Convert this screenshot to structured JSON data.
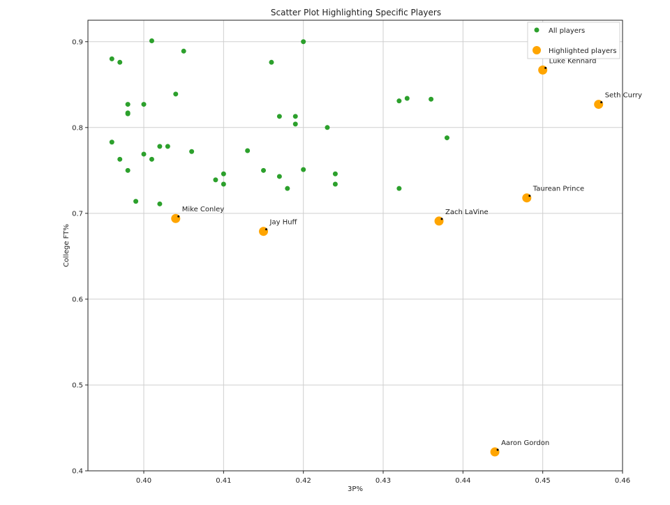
{
  "chart_data": {
    "type": "scatter",
    "title": "Scatter Plot Highlighting Specific Players",
    "xlabel": "3P%",
    "ylabel": "College FT%",
    "xlim": [
      0.393,
      0.46
    ],
    "ylim": [
      0.4,
      0.925
    ],
    "xticks": [
      0.4,
      0.41,
      0.42,
      0.43,
      0.44,
      0.45,
      0.46
    ],
    "xtick_labels": [
      "0.40",
      "0.41",
      "0.42",
      "0.43",
      "0.44",
      "0.45",
      "0.46"
    ],
    "yticks": [
      0.4,
      0.5,
      0.6,
      0.7,
      0.8,
      0.9
    ],
    "ytick_labels": [
      "0.4",
      "0.5",
      "0.6",
      "0.7",
      "0.8",
      "0.9"
    ],
    "grid": true,
    "legend_position": "top-right",
    "colors": {
      "all": "#2ca02c",
      "highlight": "#ffa500",
      "marker_dot": "#000000"
    },
    "series": [
      {
        "name": "All players",
        "points": [
          {
            "x": 0.396,
            "y": 0.88
          },
          {
            "x": 0.397,
            "y": 0.876
          },
          {
            "x": 0.401,
            "y": 0.901
          },
          {
            "x": 0.405,
            "y": 0.889
          },
          {
            "x": 0.42,
            "y": 0.9
          },
          {
            "x": 0.416,
            "y": 0.876
          },
          {
            "x": 0.404,
            "y": 0.839
          },
          {
            "x": 0.398,
            "y": 0.827
          },
          {
            "x": 0.4,
            "y": 0.827
          },
          {
            "x": 0.398,
            "y": 0.817
          },
          {
            "x": 0.398,
            "y": 0.816
          },
          {
            "x": 0.396,
            "y": 0.783
          },
          {
            "x": 0.397,
            "y": 0.763
          },
          {
            "x": 0.398,
            "y": 0.75
          },
          {
            "x": 0.399,
            "y": 0.714
          },
          {
            "x": 0.4,
            "y": 0.769
          },
          {
            "x": 0.401,
            "y": 0.763
          },
          {
            "x": 0.402,
            "y": 0.778
          },
          {
            "x": 0.403,
            "y": 0.778
          },
          {
            "x": 0.402,
            "y": 0.711
          },
          {
            "x": 0.406,
            "y": 0.772
          },
          {
            "x": 0.409,
            "y": 0.739
          },
          {
            "x": 0.41,
            "y": 0.746
          },
          {
            "x": 0.41,
            "y": 0.734
          },
          {
            "x": 0.413,
            "y": 0.773
          },
          {
            "x": 0.415,
            "y": 0.75
          },
          {
            "x": 0.417,
            "y": 0.743
          },
          {
            "x": 0.417,
            "y": 0.813
          },
          {
            "x": 0.418,
            "y": 0.729
          },
          {
            "x": 0.419,
            "y": 0.813
          },
          {
            "x": 0.419,
            "y": 0.804
          },
          {
            "x": 0.42,
            "y": 0.751
          },
          {
            "x": 0.423,
            "y": 0.8
          },
          {
            "x": 0.424,
            "y": 0.746
          },
          {
            "x": 0.424,
            "y": 0.734
          },
          {
            "x": 0.432,
            "y": 0.831
          },
          {
            "x": 0.433,
            "y": 0.834
          },
          {
            "x": 0.432,
            "y": 0.729
          },
          {
            "x": 0.436,
            "y": 0.833
          },
          {
            "x": 0.438,
            "y": 0.788
          }
        ]
      },
      {
        "name": "Highlighted players",
        "points": [
          {
            "x": 0.404,
            "y": 0.694,
            "label": "Mike Conley"
          },
          {
            "x": 0.415,
            "y": 0.679,
            "label": "Jay Huff"
          },
          {
            "x": 0.437,
            "y": 0.691,
            "label": "Zach LaVine"
          },
          {
            "x": 0.448,
            "y": 0.718,
            "label": "Taurean Prince"
          },
          {
            "x": 0.45,
            "y": 0.867,
            "label": "Luke Kennard"
          },
          {
            "x": 0.457,
            "y": 0.827,
            "label": "Seth Curry"
          },
          {
            "x": 0.444,
            "y": 0.422,
            "label": "Aaron Gordon"
          }
        ]
      }
    ]
  }
}
